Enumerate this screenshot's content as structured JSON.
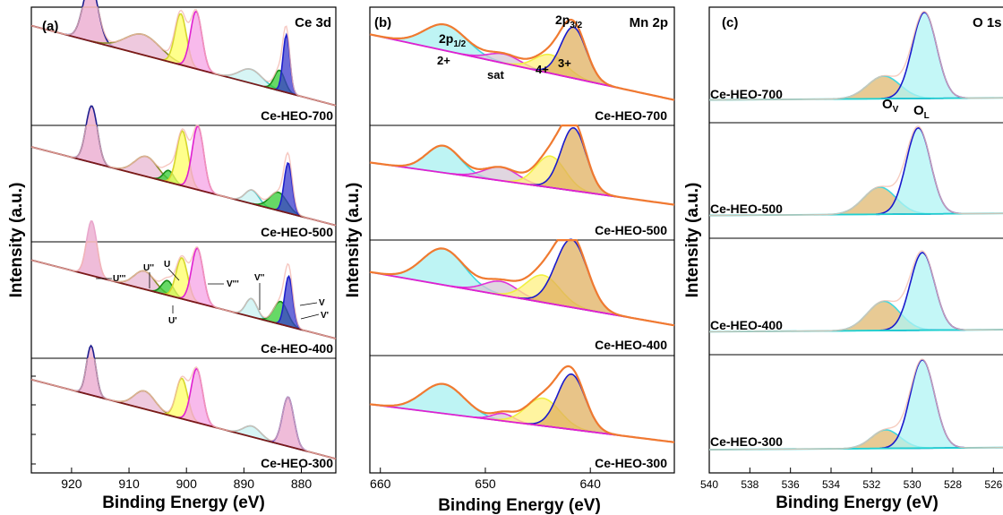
{
  "chart_data": [
    {
      "type": "line",
      "panel_label": "(a)",
      "corner_label": "Ce 3d",
      "xlabel": "Binding Energy (eV)",
      "ylabel": "Intensity (a.u.)",
      "xlim": [
        927,
        874
      ],
      "x_ticks": [
        920,
        910,
        900,
        890,
        880
      ],
      "x_tick_labels": [
        "920",
        "910",
        "900",
        "890",
        "880"
      ],
      "annotations": [
        "U'''",
        "U''",
        "U",
        "V'''",
        "V''",
        "V",
        "V'",
        "U'"
      ],
      "samples": [
        {
          "name": "Ce-HEO-700",
          "baseline": [
            [
              927,
              0.12
            ],
            [
              874,
              0.85
            ]
          ],
          "peaks": [
            {
              "center": 916.7,
              "height": 0.62,
              "width": 1.3,
              "color": "#e9a6cc",
              "line": "#1f1f8f"
            },
            {
              "center": 907.6,
              "height": 0.22,
              "width": 3.0,
              "color": "#e8b7d3",
              "line": "#8a8a2a"
            },
            {
              "center": 901.0,
              "height": 0.55,
              "width": 1.0,
              "color": "#ffff66",
              "line": "#d6d62a"
            },
            {
              "center": 898.3,
              "height": 0.62,
              "width": 1.0,
              "color": "#f5a3e6",
              "line": "#e020d0"
            },
            {
              "center": 888.8,
              "height": 0.15,
              "width": 2.0,
              "color": "#c9f2f2",
              "line": "#48c8c8"
            },
            {
              "center": 883.8,
              "height": 0.22,
              "width": 0.9,
              "color": "#33cc33",
              "line": "#1a8a1a"
            },
            {
              "center": 882.6,
              "height": 0.62,
              "width": 0.6,
              "color": "#3939cc",
              "line": "#1f1fcc"
            }
          ]
        },
        {
          "name": "Ce-HEO-500",
          "baseline": [
            [
              927,
              0.15
            ],
            [
              874,
              0.88
            ]
          ],
          "peaks": [
            {
              "center": 916.5,
              "height": 0.62,
              "width": 1.0,
              "color": "#e9a6cc",
              "line": "#1f1f8f"
            },
            {
              "center": 907.0,
              "height": 0.22,
              "width": 2.0,
              "color": "#e8b7d3",
              "line": "#8a8a2a"
            },
            {
              "center": 903.1,
              "height": 0.13,
              "width": 0.9,
              "color": "#33cc33",
              "line": "#1a8a1a"
            },
            {
              "center": 900.7,
              "height": 0.6,
              "width": 1.0,
              "color": "#ffff66",
              "line": "#d6d62a"
            },
            {
              "center": 898.0,
              "height": 0.7,
              "width": 1.0,
              "color": "#f5a3e6",
              "line": "#e020d0"
            },
            {
              "center": 888.6,
              "height": 0.15,
              "width": 1.2,
              "color": "#c9f2f2",
              "line": "#48c8c8"
            },
            {
              "center": 884.0,
              "height": 0.2,
              "width": 1.5,
              "color": "#33cc33",
              "line": "#1a8a1a"
            },
            {
              "center": 882.3,
              "height": 0.55,
              "width": 0.7,
              "color": "#3939cc",
              "line": "#1f1fcc"
            }
          ]
        },
        {
          "name": "Ce-HEO-400",
          "baseline": [
            [
              927,
              0.12
            ],
            [
              874,
              0.85
            ]
          ],
          "peaks": [
            {
              "center": 916.5,
              "height": 0.6,
              "width": 0.9,
              "color": "#e9a6cc",
              "line": "#e9a6cc"
            },
            {
              "center": 907.3,
              "height": 0.2,
              "width": 1.8,
              "color": "#e8b7d3",
              "line": "#8a8a2a"
            },
            {
              "center": 903.3,
              "height": 0.16,
              "width": 1.0,
              "color": "#33cc33",
              "line": "#1a8a1a"
            },
            {
              "center": 900.8,
              "height": 0.45,
              "width": 1.0,
              "color": "#ffff66",
              "line": "#d6d62a"
            },
            {
              "center": 898.1,
              "height": 0.6,
              "width": 1.0,
              "color": "#f5a3e6",
              "line": "#e020d0"
            },
            {
              "center": 888.7,
              "height": 0.2,
              "width": 1.0,
              "color": "#c9f2f2",
              "line": "#48c8c8"
            },
            {
              "center": 883.6,
              "height": 0.25,
              "width": 1.2,
              "color": "#33cc33",
              "line": "#1a8a1a"
            },
            {
              "center": 882.2,
              "height": 0.55,
              "width": 0.7,
              "color": "#3939cc",
              "line": "#1f1fcc"
            }
          ]
        },
        {
          "name": "Ce-HEO-300",
          "baseline": [
            [
              927,
              0.15
            ],
            [
              874,
              0.9
            ]
          ],
          "peaks": [
            {
              "center": 916.6,
              "height": 0.55,
              "width": 0.8,
              "color": "#e9a6cc",
              "line": "#1f1f8f"
            },
            {
              "center": 907.3,
              "height": 0.2,
              "width": 1.8,
              "color": "#e8b7d3",
              "line": "#8a8a2a"
            },
            {
              "center": 900.8,
              "height": 0.45,
              "width": 1.0,
              "color": "#ffff66",
              "line": "#d6d62a"
            },
            {
              "center": 898.2,
              "height": 0.6,
              "width": 1.0,
              "color": "#f5a3e6",
              "line": "#e020d0"
            },
            {
              "center": 888.6,
              "height": 0.12,
              "width": 1.5,
              "color": "#c9f2f2",
              "line": "#48c8c8"
            },
            {
              "center": 882.3,
              "height": 0.55,
              "width": 1.0,
              "color": "#e9a6cc",
              "line": "#1f1fcc"
            }
          ]
        }
      ]
    },
    {
      "type": "line",
      "panel_label": "(b)",
      "corner_label": "Mn 2p",
      "xlabel": "Binding Energy (eV)",
      "ylabel": "Intensity (a.u.)",
      "xlim": [
        661,
        632
      ],
      "x_ticks": [
        660,
        650,
        640
      ],
      "x_tick_labels": [
        "660",
        "650",
        "640"
      ],
      "annotations": [
        "2p1/2",
        "2p3/2",
        "2+",
        "sat",
        "4+",
        "3+"
      ],
      "samples": [
        {
          "name": "Ce-HEO-700",
          "baseline": [
            [
              661,
              0.2
            ],
            [
              632,
              0.8
            ]
          ],
          "peaks": [
            {
              "center": 653.8,
              "height": 0.28,
              "width": 2.0,
              "color": "#a8f0f0",
              "line": "#40d8e0"
            },
            {
              "center": 648.2,
              "height": 0.1,
              "width": 1.5,
              "color": "#d6c8d6",
              "line": "#e030d8"
            },
            {
              "center": 643.8,
              "height": 0.2,
              "width": 1.5,
              "color": "#fff080",
              "line": "#f0f040"
            },
            {
              "center": 641.6,
              "height": 0.55,
              "width": 1.2,
              "color": "#e0b060",
              "line": "#1a1acc"
            }
          ]
        },
        {
          "name": "Ce-HEO-500",
          "baseline": [
            [
              661,
              0.3
            ],
            [
              632,
              0.7
            ]
          ],
          "peaks": [
            {
              "center": 654.0,
              "height": 0.3,
              "width": 1.6,
              "color": "#a8f0f0",
              "line": "#40d8e0"
            },
            {
              "center": 648.5,
              "height": 0.15,
              "width": 1.6,
              "color": "#d6c8d6",
              "line": "#e030d8"
            },
            {
              "center": 643.8,
              "height": 0.35,
              "width": 1.4,
              "color": "#fff080",
              "line": "#f0f040"
            },
            {
              "center": 641.6,
              "height": 0.7,
              "width": 1.2,
              "color": "#e0b060",
              "line": "#1a1acc"
            }
          ]
        },
        {
          "name": "Ce-HEO-400",
          "baseline": [
            [
              661,
              0.25
            ],
            [
              632,
              0.75
            ]
          ],
          "peaks": [
            {
              "center": 654.0,
              "height": 0.4,
              "width": 2.0,
              "color": "#a8f0f0",
              "line": "#40d8e0"
            },
            {
              "center": 648.5,
              "height": 0.15,
              "width": 1.6,
              "color": "#d6c8d6",
              "line": "#e030d8"
            },
            {
              "center": 644.5,
              "height": 0.3,
              "width": 1.6,
              "color": "#fff080",
              "line": "#f0f040"
            },
            {
              "center": 641.8,
              "height": 0.75,
              "width": 1.5,
              "color": "#e0b060",
              "line": "#1a1acc"
            }
          ]
        },
        {
          "name": "Ce-HEO-300",
          "baseline": [
            [
              661,
              0.4
            ],
            [
              632,
              0.75
            ]
          ],
          "peaks": [
            {
              "center": 654.0,
              "height": 0.32,
              "width": 2.0,
              "color": "#a8f0f0",
              "line": "#40d8e0"
            },
            {
              "center": 648.3,
              "height": 0.08,
              "width": 1.0,
              "color": "#d6c8d6",
              "line": "#e030d8"
            },
            {
              "center": 644.5,
              "height": 0.3,
              "width": 1.6,
              "color": "#fff080",
              "line": "#f0f040"
            },
            {
              "center": 641.8,
              "height": 0.6,
              "width": 1.3,
              "color": "#e0b060",
              "line": "#1a1acc"
            }
          ]
        }
      ]
    },
    {
      "type": "line",
      "panel_label": "(c)",
      "corner_label": "O 1s",
      "xlabel": "Binding Energy (eV)",
      "ylabel": "Intensity (a.u.)",
      "xlim": [
        540,
        525
      ],
      "x_ticks": [
        540,
        538,
        536,
        534,
        532,
        530,
        528,
        526
      ],
      "x_tick_labels": [
        "540",
        "538",
        "536",
        "534",
        "532",
        "530",
        "528",
        "526"
      ],
      "annotations": [
        "OL",
        "OV"
      ],
      "samples": [
        {
          "name": "Ce-HEO-700",
          "baseline": [
            [
              540,
              0.82
            ],
            [
              525,
              0.8
            ]
          ],
          "peaks": [
            {
              "center": 531.4,
              "height": 0.25,
              "width": 0.8,
              "color": "#e0b870",
              "line": "#40d8e0"
            },
            {
              "center": 529.4,
              "height": 0.95,
              "width": 0.6,
              "color": "#b0f4f4",
              "line": "#1a1acc"
            }
          ]
        },
        {
          "name": "Ce-HEO-500",
          "baseline": [
            [
              540,
              0.82
            ],
            [
              525,
              0.8
            ]
          ],
          "peaks": [
            {
              "center": 531.6,
              "height": 0.3,
              "width": 0.8,
              "color": "#e0b870",
              "line": "#40d8e0"
            },
            {
              "center": 529.7,
              "height": 0.95,
              "width": 0.6,
              "color": "#b0f4f4",
              "line": "#1a1acc"
            }
          ]
        },
        {
          "name": "Ce-HEO-400",
          "baseline": [
            [
              540,
              0.82
            ],
            [
              525,
              0.8
            ]
          ],
          "peaks": [
            {
              "center": 531.4,
              "height": 0.32,
              "width": 0.8,
              "color": "#e0b870",
              "line": "#40d8e0"
            },
            {
              "center": 529.5,
              "height": 0.85,
              "width": 0.6,
              "color": "#b0f4f4",
              "line": "#1a1acc"
            }
          ]
        },
        {
          "name": "Ce-HEO-300",
          "baseline": [
            [
              540,
              0.82
            ],
            [
              525,
              0.8
            ]
          ],
          "peaks": [
            {
              "center": 531.3,
              "height": 0.2,
              "width": 0.7,
              "color": "#e0b870",
              "line": "#40d8e0"
            },
            {
              "center": 529.5,
              "height": 0.95,
              "width": 0.6,
              "color": "#b0f4f4",
              "line": "#1a1acc"
            }
          ]
        }
      ]
    }
  ],
  "colors": {
    "baseline_a": "#7a1a1a",
    "baseline_b": "#e020d0",
    "baseline_c": "#20d0d0",
    "envelope_a": "#f4b9b0",
    "envelope_b": "#f07a30",
    "envelope_c": "#f4c0b0"
  }
}
